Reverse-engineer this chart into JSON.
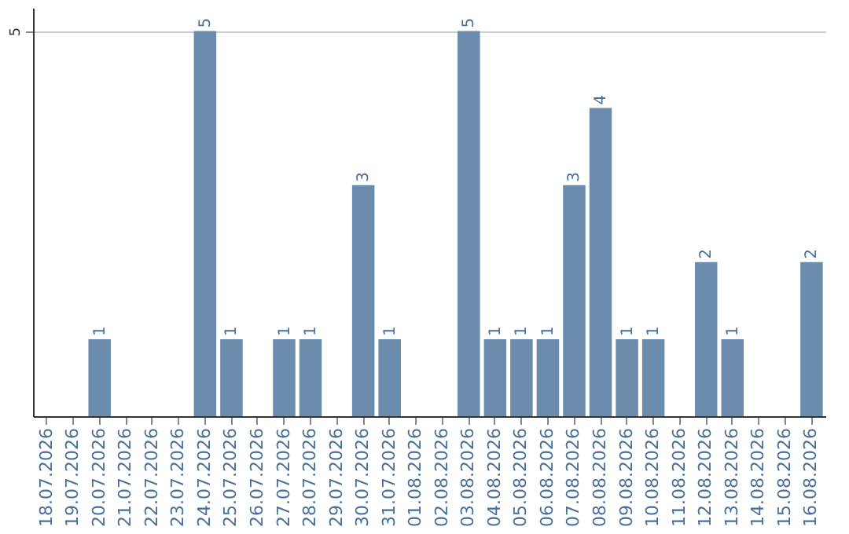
{
  "chart_data": {
    "type": "bar",
    "categories": [
      "18.07.2026",
      "19.07.2026",
      "20.07.2026",
      "21.07.2026",
      "22.07.2026",
      "23.07.2026",
      "24.07.2026",
      "25.07.2026",
      "26.07.2026",
      "27.07.2026",
      "28.07.2026",
      "29.07.2026",
      "30.07.2026",
      "31.07.2026",
      "01.08.2026",
      "02.08.2026",
      "03.08.2026",
      "04.08.2026",
      "05.08.2026",
      "06.08.2026",
      "07.08.2026",
      "08.08.2026",
      "09.08.2026",
      "10.08.2026",
      "11.08.2026",
      "12.08.2026",
      "13.08.2026",
      "14.08.2026",
      "15.08.2026",
      "16.08.2026"
    ],
    "values": [
      0,
      0,
      1,
      0,
      0,
      0,
      5,
      1,
      0,
      1,
      1,
      0,
      3,
      1,
      0,
      0,
      5,
      1,
      1,
      1,
      3,
      4,
      1,
      1,
      0,
      2,
      1,
      0,
      0,
      2
    ],
    "value_labels": [
      null,
      null,
      "1",
      null,
      null,
      null,
      "5",
      "1",
      null,
      "1",
      "1",
      null,
      "3",
      "1",
      null,
      null,
      "5",
      "1",
      "1",
      "1",
      "3",
      "4",
      "1",
      "1",
      null,
      "2",
      "1",
      null,
      null,
      "2"
    ],
    "color": "#6b8cad",
    "ylim": [
      0,
      5.3
    ],
    "yticks": [
      5
    ],
    "grid": "y"
  }
}
